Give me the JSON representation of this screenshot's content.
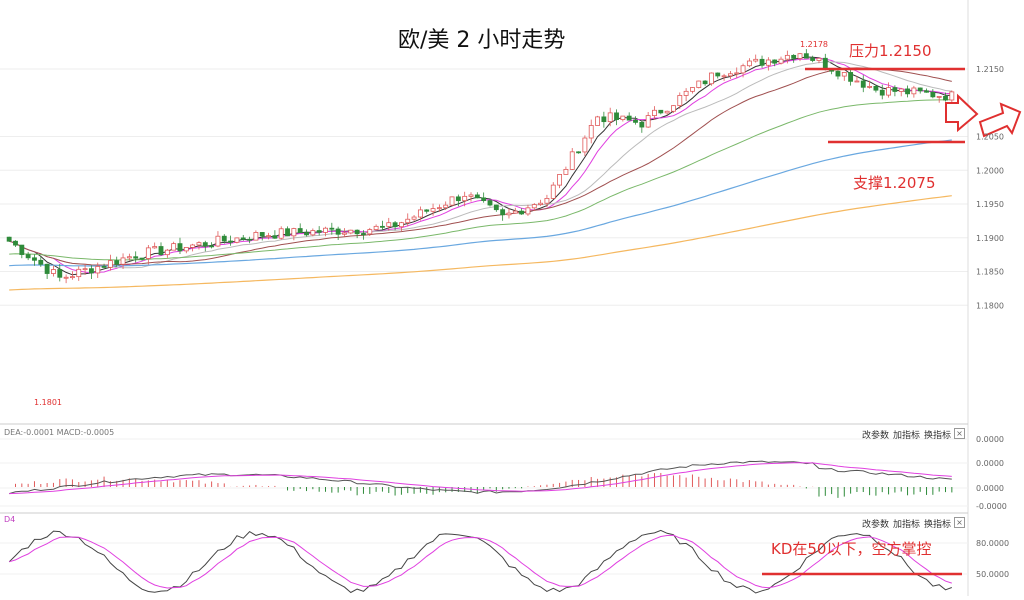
{
  "title": "欧/美 2 小时走势",
  "annotations": {
    "resistance": "压力1.2150",
    "support": "支撑1.2075",
    "kd_note": "KD在50以下，空方掌控",
    "high_label": "1.2178",
    "low_label": "1.1801"
  },
  "panel_buttons": [
    "改参数",
    "加指标",
    "换指标"
  ],
  "macd_header": "DEA:-0.0001 MACD:-0.0005",
  "kd_header": "D4",
  "colors": {
    "up": "#e05a5a",
    "down": "#2e8b3a",
    "annotation": "#e03030",
    "ma_black": "#333333",
    "ma_pink": "#e040e0",
    "ma_gray": "#bbbbbb",
    "ma_brown": "#a05050",
    "ma_green": "#7ab86a",
    "ma_blue": "#6aa8e0",
    "ma_orange": "#f5b860"
  },
  "chart_data": [
    {
      "type": "candlestick",
      "title": "欧/美 2 小时走势",
      "y_ticks": [
        "1.2150",
        "1.2050",
        "1.2000",
        "1.1950",
        "1.1900",
        "1.1850",
        "1.1800"
      ],
      "ylim": [
        1.178,
        1.218
      ],
      "resistance": 1.215,
      "support": 1.2075,
      "high": 1.2178,
      "low": 1.1801,
      "series_lines": [
        "ma_black",
        "ma_pink",
        "ma_gray",
        "ma_brown",
        "ma_green",
        "ma_blue",
        "ma_orange"
      ]
    },
    {
      "type": "line",
      "title": "MACD",
      "y_ticks": [
        "0.0000",
        "0.0000",
        "0.0000",
        "-0.0000"
      ]
    },
    {
      "type": "line",
      "title": "KD",
      "y_ticks": [
        "80.0000",
        "50.0000"
      ],
      "ylim": [
        40,
        95
      ],
      "reference_level": 50
    }
  ]
}
